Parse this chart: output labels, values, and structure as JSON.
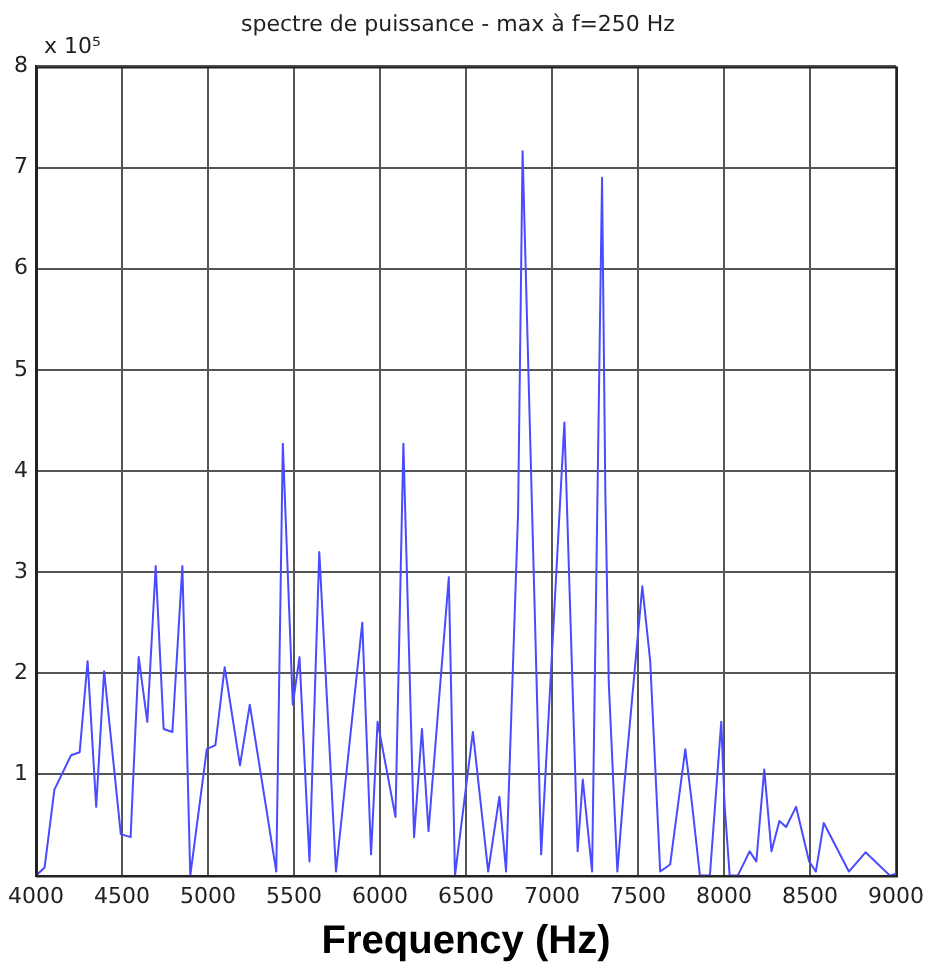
{
  "chart_data": {
    "type": "line",
    "title": "spectre de puissance - max à f=250 Hz",
    "xlabel": "Frequency (Hz)",
    "annotations": [
      "x 10⁵"
    ],
    "series": [
      {
        "color": "#4a4aff",
        "x": [
          4000,
          4050,
          4107,
          4204,
          4254,
          4300,
          4350,
          4396,
          4493,
          4550,
          4597,
          4647,
          4696,
          4742,
          4793,
          4851,
          4897,
          4993,
          5043,
          5097,
          5186,
          5243,
          5397,
          5435,
          5493,
          5532,
          5590,
          5647,
          5744,
          5897,
          5948,
          5986,
          6090,
          6136,
          6198,
          6244,
          6282,
          6400,
          6436,
          6540,
          6629,
          6694,
          6733,
          6803,
          6829,
          6937,
          7072,
          7149,
          7179,
          7233,
          7291,
          7310,
          7330,
          7380,
          7418,
          7525,
          7571,
          7629,
          7687,
          7775,
          7814,
          7860,
          7918,
          7984,
          8003,
          8033,
          8080,
          8149,
          8188,
          8234,
          8276,
          8322,
          8361,
          8419,
          8495,
          8534,
          8580,
          8726,
          8823,
          8965,
          9000
        ],
        "values": [
          0.0,
          0.08,
          0.85,
          1.19,
          1.22,
          2.12,
          0.68,
          2.02,
          0.41,
          0.38,
          2.16,
          1.52,
          3.06,
          1.45,
          1.42,
          3.06,
          0.0,
          1.25,
          1.29,
          2.06,
          1.09,
          1.69,
          0.04,
          4.27,
          1.69,
          2.16,
          0.14,
          3.2,
          0.04,
          2.5,
          0.21,
          1.52,
          0.58,
          4.27,
          0.38,
          1.45,
          0.44,
          2.95,
          0.0,
          1.42,
          0.04,
          0.78,
          0.04,
          3.6,
          7.16,
          0.21,
          4.48,
          0.24,
          0.95,
          0.04,
          6.9,
          3.8,
          1.91,
          0.04,
          0.85,
          2.86,
          2.12,
          0.04,
          0.11,
          1.25,
          0.71,
          0.0,
          0.0,
          1.52,
          0.71,
          0.0,
          0.0,
          0.24,
          0.14,
          1.05,
          0.24,
          0.54,
          0.48,
          0.68,
          0.14,
          0.04,
          0.52,
          0.04,
          0.23,
          0.0,
          0.02
        ]
      }
    ],
    "xlim": [
      4000,
      9000
    ],
    "xticks": [
      4000,
      4500,
      5000,
      5500,
      6000,
      6500,
      7000,
      7500,
      8000,
      8500,
      9000
    ],
    "ylim": [
      0,
      8
    ],
    "yticks": [
      {
        "value": 0,
        "label": null
      },
      1,
      2,
      3,
      4,
      5,
      6,
      7,
      8
    ],
    "grid": true,
    "legend": false,
    "marker": "none",
    "line_style": "solid"
  }
}
